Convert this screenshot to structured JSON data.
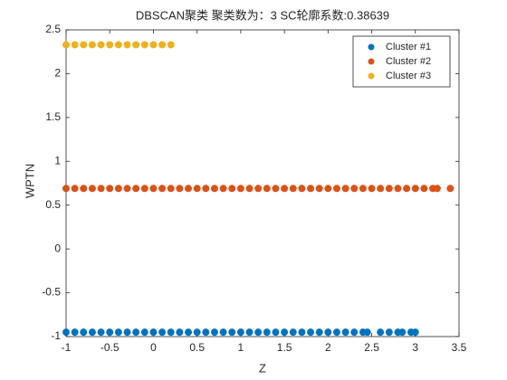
{
  "chart_data": {
    "type": "scatter",
    "title": "DBSCAN聚类  聚类数为：3  SC轮廓系数:0.38639",
    "x_label": "Z",
    "y_label": "WPTN",
    "xlim": [
      -1,
      3.5
    ],
    "xticks": [
      -1,
      -0.5,
      0,
      0.5,
      1,
      1.5,
      2,
      2.5,
      3,
      3.5
    ],
    "ylim": [
      -1,
      2.5
    ],
    "yticks": [
      -1,
      -0.5,
      0,
      0.5,
      1,
      1.5,
      2,
      2.5
    ],
    "legend": "northeast",
    "series": [
      {
        "name": "Cluster #1",
        "color": "#0072BD",
        "x": [
          -1.0,
          -0.9,
          -0.8,
          -0.7,
          -0.6,
          -0.5,
          -0.4,
          -0.3,
          -0.2,
          -0.1,
          0.0,
          0.1,
          0.2,
          0.3,
          0.4,
          0.5,
          0.6,
          0.7,
          0.8,
          0.9,
          1.0,
          1.1,
          1.2,
          1.3,
          1.4,
          1.5,
          1.6,
          1.7,
          1.8,
          1.9,
          2.0,
          2.1,
          2.2,
          2.3,
          2.4,
          2.45,
          2.6,
          2.7,
          2.8,
          2.85,
          2.95,
          3.0
        ],
        "values": [
          -0.95,
          -0.95,
          -0.95,
          -0.95,
          -0.95,
          -0.95,
          -0.95,
          -0.95,
          -0.95,
          -0.95,
          -0.95,
          -0.95,
          -0.95,
          -0.95,
          -0.95,
          -0.95,
          -0.95,
          -0.95,
          -0.95,
          -0.95,
          -0.95,
          -0.95,
          -0.95,
          -0.95,
          -0.95,
          -0.95,
          -0.95,
          -0.95,
          -0.95,
          -0.95,
          -0.95,
          -0.95,
          -0.95,
          -0.95,
          -0.95,
          -0.95,
          -0.95,
          -0.95,
          -0.95,
          -0.95,
          -0.95,
          -0.95
        ]
      },
      {
        "name": "Cluster #2",
        "color": "#D95319",
        "x": [
          -1.0,
          -0.9,
          -0.8,
          -0.7,
          -0.6,
          -0.5,
          -0.4,
          -0.3,
          -0.2,
          -0.1,
          0.0,
          0.1,
          0.2,
          0.3,
          0.4,
          0.5,
          0.6,
          0.7,
          0.8,
          0.9,
          1.0,
          1.1,
          1.2,
          1.3,
          1.4,
          1.5,
          1.6,
          1.7,
          1.8,
          1.9,
          2.0,
          2.1,
          2.2,
          2.3,
          2.4,
          2.5,
          2.6,
          2.7,
          2.8,
          2.9,
          3.0,
          3.1,
          3.2,
          3.25,
          3.4
        ],
        "values": [
          0.69,
          0.69,
          0.69,
          0.69,
          0.69,
          0.69,
          0.69,
          0.69,
          0.69,
          0.69,
          0.69,
          0.69,
          0.69,
          0.69,
          0.69,
          0.69,
          0.69,
          0.69,
          0.69,
          0.69,
          0.69,
          0.69,
          0.69,
          0.69,
          0.69,
          0.69,
          0.69,
          0.69,
          0.69,
          0.69,
          0.69,
          0.69,
          0.69,
          0.69,
          0.69,
          0.69,
          0.69,
          0.69,
          0.69,
          0.69,
          0.69,
          0.69,
          0.69,
          0.69,
          0.69
        ]
      },
      {
        "name": "Cluster #3",
        "color": "#EDB120",
        "x": [
          -1.0,
          -0.9,
          -0.8,
          -0.7,
          -0.6,
          -0.5,
          -0.4,
          -0.3,
          -0.2,
          -0.1,
          0.0,
          0.1,
          0.2
        ],
        "values": [
          2.33,
          2.33,
          2.33,
          2.33,
          2.33,
          2.33,
          2.33,
          2.33,
          2.33,
          2.33,
          2.33,
          2.33,
          2.33
        ]
      }
    ]
  }
}
